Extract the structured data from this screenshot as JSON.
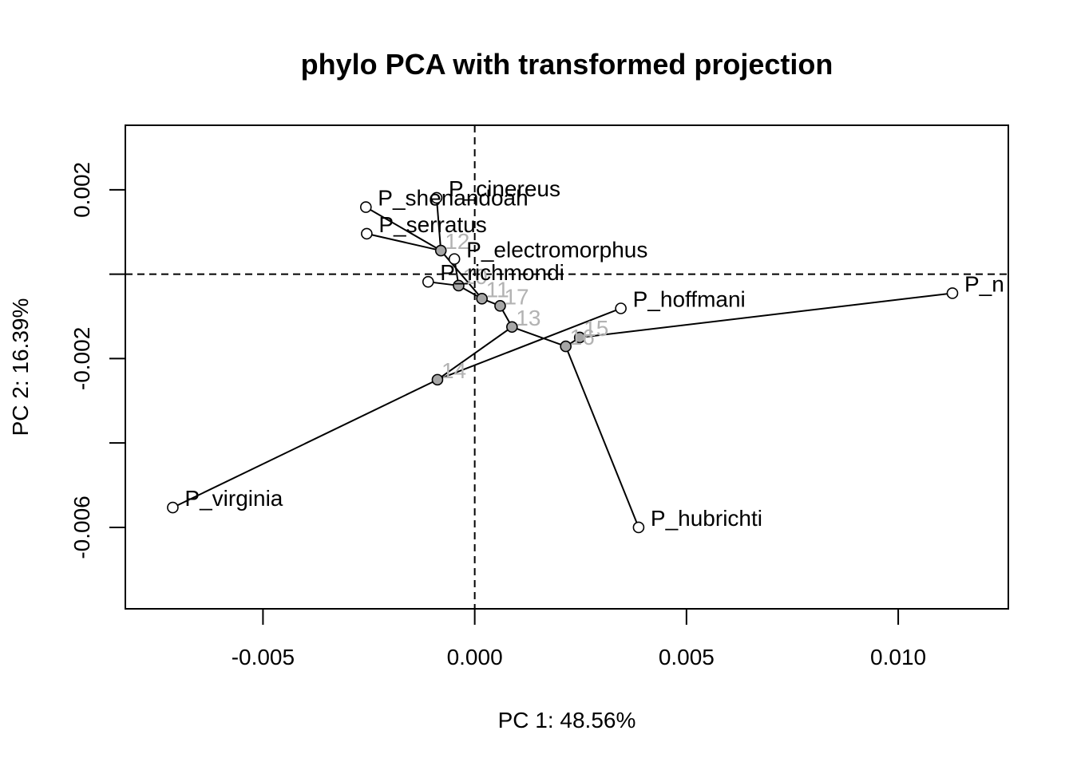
{
  "chart_data": {
    "type": "scatter",
    "title": "phylo PCA with transformed projection",
    "xlabel": "PC 1: 48.56%",
    "ylabel": "PC 2: 16.39%",
    "xlim": [
      -0.00825,
      0.0126
    ],
    "ylim": [
      -0.00793,
      0.00353
    ],
    "x_ticks": [
      {
        "value": -0.005,
        "label": "-0.005"
      },
      {
        "value": 0.0,
        "label": "0.000"
      },
      {
        "value": 0.005,
        "label": "0.005"
      },
      {
        "value": 0.01,
        "label": "0.010"
      }
    ],
    "y_ticks": [
      {
        "value": 0.002,
        "label": "0.002"
      },
      {
        "value": 0.0,
        "label": ""
      },
      {
        "value": -0.002,
        "label": "-0.002"
      },
      {
        "value": -0.004,
        "label": ""
      },
      {
        "value": -0.006,
        "label": "-0.006"
      }
    ],
    "reference_lines": {
      "x": 0,
      "y": 0,
      "style": "dashed"
    },
    "colors": {
      "tip_fill": "#ffffff",
      "node_fill": "#a6a6a6",
      "node_label": "#b3b3b3",
      "line": "#000000"
    },
    "tips": [
      {
        "id": "virginia",
        "label": "P_virginia",
        "x": -0.00713,
        "y": -0.00553
      },
      {
        "id": "shenandoah",
        "label": "P_shenandoah",
        "x": -0.00257,
        "y": 0.00159
      },
      {
        "id": "serratus",
        "label": "P_serratus",
        "x": -0.00255,
        "y": 0.00096
      },
      {
        "id": "cinereus",
        "label": "P_cinereus",
        "x": -0.0009,
        "y": 0.00181
      },
      {
        "id": "electromorphus",
        "label": "P_electromorphus",
        "x": -0.00048,
        "y": 0.00036
      },
      {
        "id": "richmondi",
        "label": "P_richmondi",
        "x": -0.0011,
        "y": -0.00018
      },
      {
        "id": "hoffmani",
        "label": "P_hoffmani",
        "x": 0.00345,
        "y": -0.00081
      },
      {
        "id": "n",
        "label": "P_n",
        "x": 0.01128,
        "y": -0.00045
      },
      {
        "id": "hubrichti",
        "label": "P_hubrichti",
        "x": 0.00387,
        "y": -0.006
      }
    ],
    "nodes": [
      {
        "id": "12",
        "label": "12",
        "x": -0.0008,
        "y": 0.00056
      },
      {
        "id": "10",
        "label": "10",
        "x": -0.00038,
        "y": -0.00027
      },
      {
        "id": "11",
        "label": "11",
        "x": 0.00017,
        "y": -0.00058
      },
      {
        "id": "17",
        "label": "17",
        "x": 0.0006,
        "y": -0.00075
      },
      {
        "id": "13",
        "label": "13",
        "x": 0.00088,
        "y": -0.00125
      },
      {
        "id": "16",
        "label": "16",
        "x": 0.00215,
        "y": -0.00171
      },
      {
        "id": "15",
        "label": "15",
        "x": 0.00248,
        "y": -0.0015
      },
      {
        "id": "14",
        "label": "14",
        "x": -0.00088,
        "y": -0.0025
      }
    ],
    "edges": [
      [
        "12",
        "shenandoah"
      ],
      [
        "12",
        "serratus"
      ],
      [
        "12",
        "cinereus"
      ],
      [
        "12",
        "11"
      ],
      [
        "10",
        "richmondi"
      ],
      [
        "10",
        "electromorphus"
      ],
      [
        "10",
        "11"
      ],
      [
        "11",
        "17"
      ],
      [
        "17",
        "13"
      ],
      [
        "13",
        "16"
      ],
      [
        "16",
        "15"
      ],
      [
        "16",
        "hubrichti"
      ],
      [
        "15",
        "n"
      ],
      [
        "13",
        "14"
      ],
      [
        "14",
        "virginia"
      ],
      [
        "14",
        "hoffmani"
      ]
    ]
  }
}
